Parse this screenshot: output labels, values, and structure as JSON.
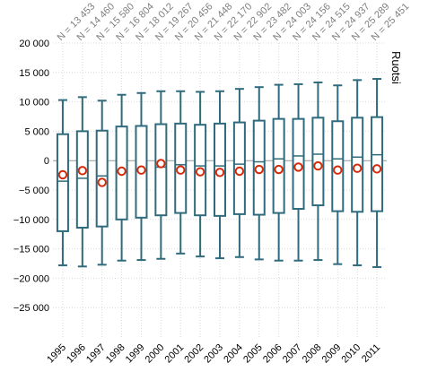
{
  "chart_data": {
    "type": "boxplot",
    "title": "Ruotsi",
    "xlabel": "",
    "ylabel": "",
    "ylim": [
      -30000,
      20000
    ],
    "y_ticks": [
      20000,
      15000,
      10000,
      5000,
      0,
      -5000,
      -10000,
      -15000,
      -20000,
      -25000
    ],
    "y_tick_labels": [
      "20 000",
      "15 000",
      "10 000",
      "5 000",
      "0",
      "−5 000",
      "−10 000",
      "−15 000",
      "−20 000",
      "−25 000"
    ],
    "grid": true,
    "zero_line": 0,
    "colors": {
      "box": "#2f6b7c",
      "mean_marker": "#d42a0a",
      "grid": "#d9d9d9",
      "n_text": "#808080",
      "zero_line": "#9a9a9a"
    },
    "categories": [
      "1995",
      "1996",
      "1997",
      "1998",
      "1999",
      "2000",
      "2001",
      "2002",
      "2003",
      "2004",
      "2005",
      "2006",
      "2007",
      "2008",
      "2009",
      "2010",
      "2011"
    ],
    "n_labels": [
      "N = 13 453",
      "N = 14 460",
      "N = 15 580",
      "N = 16 804",
      "N = 18 012",
      "N = 19 267",
      "N = 20 456",
      "N = 21 448",
      "N = 22 170",
      "N = 22 902",
      "N = 23 482",
      "N = 24 003",
      "N = 24 156",
      "N = 24 515",
      "N = 24 937",
      "N = 25 289",
      "N = 25 451"
    ],
    "series": [
      {
        "category": "1995",
        "whisker_low": -17800,
        "q1": -12000,
        "median": -3500,
        "q3": 4500,
        "whisker_high": 10300,
        "mean": -2400
      },
      {
        "category": "1996",
        "whisker_low": -18000,
        "q1": -11400,
        "median": -3000,
        "q3": 5000,
        "whisker_high": 10800,
        "mean": -1700
      },
      {
        "category": "1997",
        "whisker_low": -17700,
        "q1": -11200,
        "median": -2600,
        "q3": 5100,
        "whisker_high": 10200,
        "mean": -3700
      },
      {
        "category": "1998",
        "whisker_low": -17000,
        "q1": -10000,
        "median": -1900,
        "q3": 5800,
        "whisker_high": 11200,
        "mean": -1800
      },
      {
        "category": "1999",
        "whisker_low": -16900,
        "q1": -9700,
        "median": -1700,
        "q3": 5900,
        "whisker_high": 11500,
        "mean": -1600
      },
      {
        "category": "2000",
        "whisker_low": -16700,
        "q1": -9300,
        "median": -1100,
        "q3": 6200,
        "whisker_high": 11800,
        "mean": -500
      },
      {
        "category": "2001",
        "whisker_low": -15800,
        "q1": -8900,
        "median": -700,
        "q3": 6300,
        "whisker_high": 11800,
        "mean": -1600
      },
      {
        "category": "2002",
        "whisker_low": -16300,
        "q1": -9300,
        "median": -900,
        "q3": 6100,
        "whisker_high": 11700,
        "mean": -1900
      },
      {
        "category": "2003",
        "whisker_low": -16600,
        "q1": -9400,
        "median": -900,
        "q3": 6300,
        "whisker_high": 11800,
        "mean": -2000
      },
      {
        "category": "2004",
        "whisker_low": -16400,
        "q1": -9100,
        "median": -600,
        "q3": 6500,
        "whisker_high": 12200,
        "mean": -1800
      },
      {
        "category": "2005",
        "whisker_low": -16800,
        "q1": -9200,
        "median": -200,
        "q3": 6800,
        "whisker_high": 12500,
        "mean": -1500
      },
      {
        "category": "2006",
        "whisker_low": -17000,
        "q1": -8900,
        "median": 300,
        "q3": 7100,
        "whisker_high": 12900,
        "mean": -1500
      },
      {
        "category": "2007",
        "whisker_low": -17000,
        "q1": -8200,
        "median": 800,
        "q3": 7100,
        "whisker_high": 13000,
        "mean": -1100
      },
      {
        "category": "2008",
        "whisker_low": -16900,
        "q1": -7600,
        "median": 1100,
        "q3": 7300,
        "whisker_high": 13300,
        "mean": -900
      },
      {
        "category": "2009",
        "whisker_low": -17600,
        "q1": -8600,
        "median": 300,
        "q3": 6700,
        "whisker_high": 12800,
        "mean": -1600
      },
      {
        "category": "2010",
        "whisker_low": -17800,
        "q1": -8700,
        "median": 600,
        "q3": 7300,
        "whisker_high": 13700,
        "mean": -1300
      },
      {
        "category": "2011",
        "whisker_low": -18100,
        "q1": -8600,
        "median": 1000,
        "q3": 7400,
        "whisker_high": 13900,
        "mean": -1400
      }
    ]
  }
}
